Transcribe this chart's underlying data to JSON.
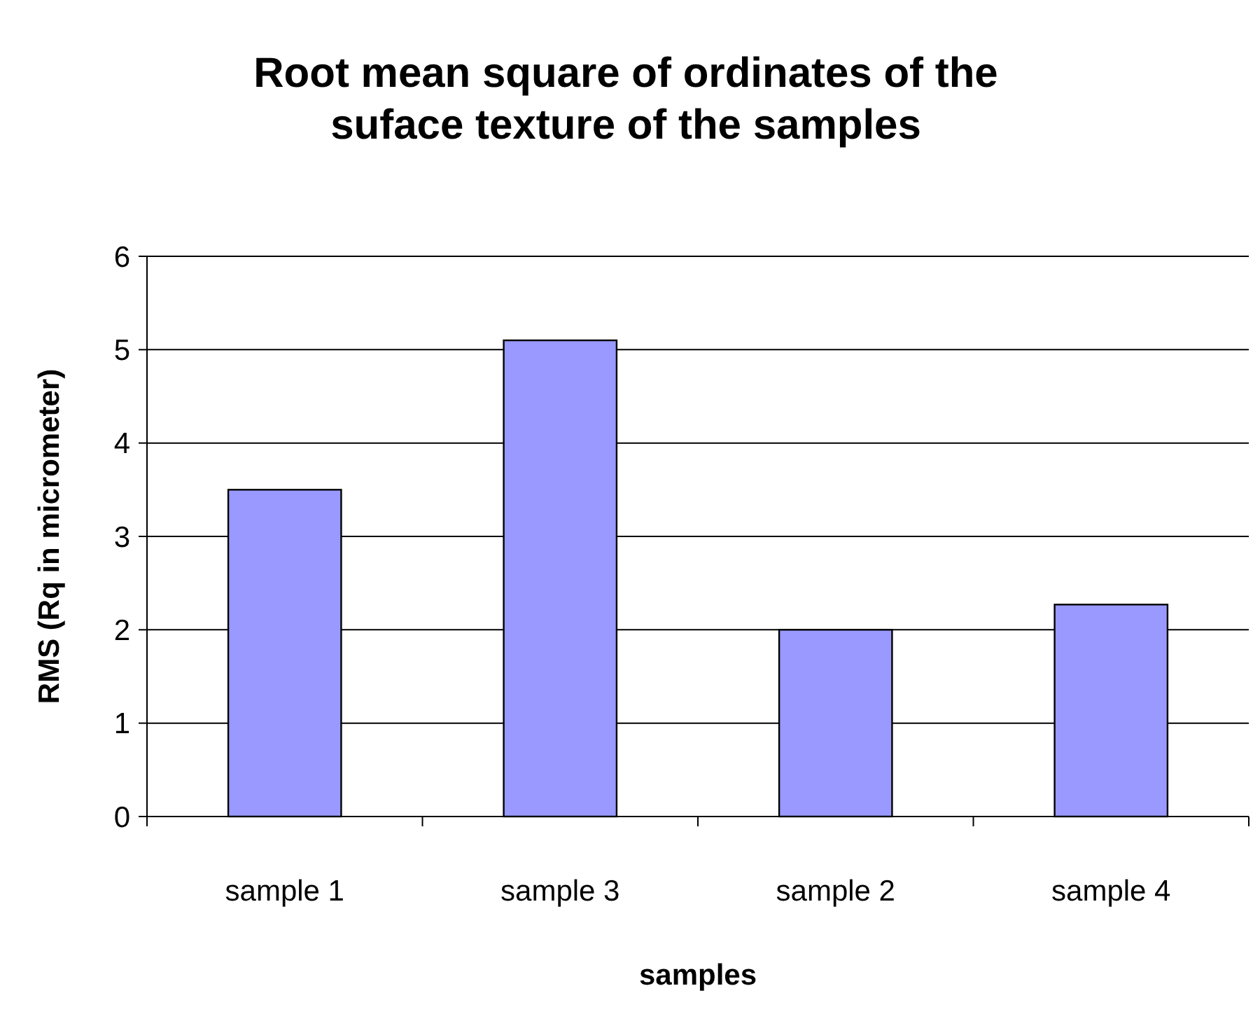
{
  "chart_data": {
    "type": "bar",
    "title": "Root mean square of ordinates of the suface texture of the samples",
    "xlabel": "samples",
    "ylabel": "RMS (Rq in micrometer)",
    "categories": [
      "sample 1",
      "sample 3",
      "sample 2",
      "sample 4"
    ],
    "values": [
      3.5,
      5.1,
      2.0,
      2.27
    ],
    "color": "#9999ff",
    "ylim": [
      0,
      6
    ],
    "yticks": [
      0,
      1,
      2,
      3,
      4,
      5,
      6
    ],
    "grid": "y"
  }
}
